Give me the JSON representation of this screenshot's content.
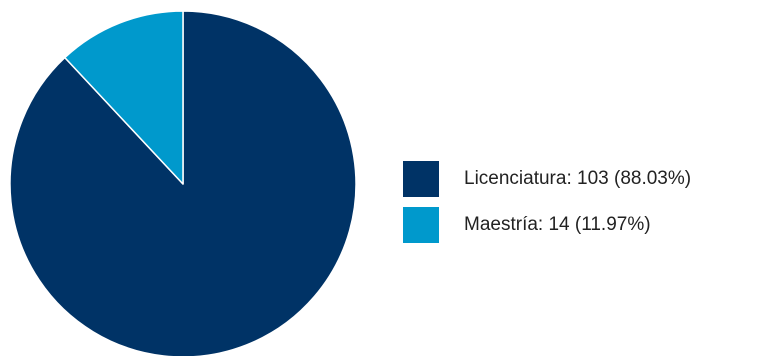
{
  "chart_data": {
    "type": "pie",
    "categories": [
      "Licenciatura",
      "Maestría"
    ],
    "values": [
      103,
      14
    ],
    "percentages": [
      88.03,
      11.97
    ],
    "colors": [
      "#003366",
      "#0099cc"
    ],
    "legend_labels": [
      "Licenciatura: 103 (88.03%)",
      "Maestría: 14 (11.97%)"
    ],
    "legend_position": "right",
    "start_angle": "top, counterclockwise"
  }
}
